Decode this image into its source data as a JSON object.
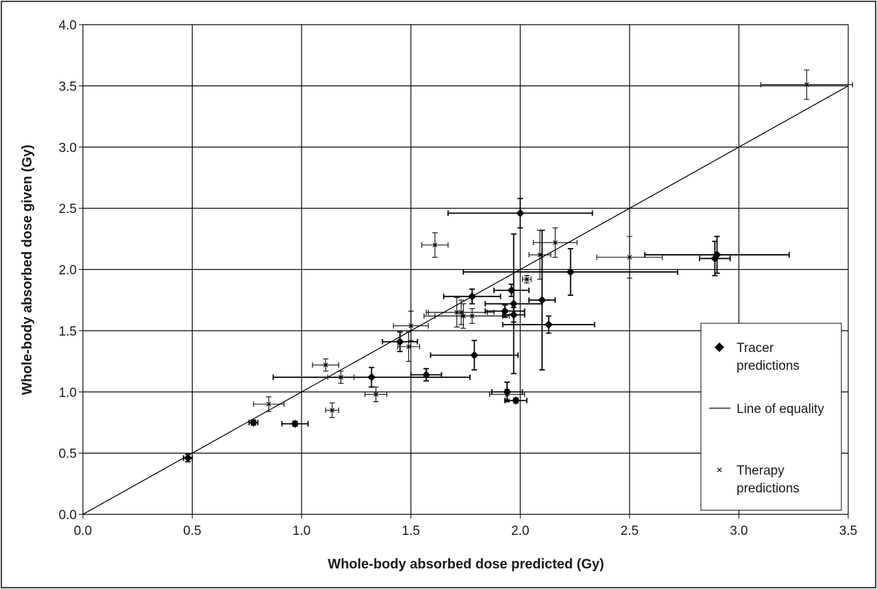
{
  "chart_data": {
    "type": "scatter",
    "title": "",
    "xlabel": "Whole-body absorbed dose predicted (Gy)",
    "ylabel": "Whole-body absorbed dose given (Gy)",
    "xlim": [
      0,
      3.5
    ],
    "ylim": [
      0,
      4.0
    ],
    "xticks": [
      "0.0",
      "0.5",
      "1.0",
      "1.5",
      "2.0",
      "2.5",
      "3.0",
      "3.5"
    ],
    "yticks": [
      "0.0",
      "0.5",
      "1.0",
      "1.5",
      "2.0",
      "2.5",
      "3.0",
      "3.5",
      "4.0"
    ],
    "grid": true,
    "legend_position": "bottom-right",
    "legend": [
      {
        "label_lines": [
          "Tracer",
          "predictions"
        ],
        "marker": "diamond"
      },
      {
        "label_lines": [
          "Line of equality"
        ],
        "marker": "line"
      },
      {
        "label_lines": [
          "Therapy",
          "predictions"
        ],
        "marker": "x"
      }
    ],
    "line_of_equality": {
      "x": [
        0,
        3.5
      ],
      "y": [
        0,
        3.5
      ]
    },
    "series": [
      {
        "name": "Tracer predictions",
        "marker": "diamond",
        "points": [
          {
            "x": 0.48,
            "y": 0.46,
            "xerr": 0.02,
            "yerr": 0.03
          },
          {
            "x": 0.78,
            "y": 0.75,
            "xerr": 0.02,
            "yerr": 0.02
          },
          {
            "x": 0.97,
            "y": 0.74,
            "xerr": 0.06,
            "yerr": 0.02
          },
          {
            "x": 1.32,
            "y": 1.12,
            "xerr": 0.45,
            "yerr": 0.08
          },
          {
            "x": 1.45,
            "y": 1.41,
            "xerr": 0.08,
            "yerr": 0.08
          },
          {
            "x": 1.57,
            "y": 1.14,
            "xerr": 0.07,
            "yerr": 0.05
          },
          {
            "x": 1.78,
            "y": 1.78,
            "xerr": 0.13,
            "yerr": 0.06
          },
          {
            "x": 1.79,
            "y": 1.3,
            "xerr": 0.2,
            "yerr": 0.12
          },
          {
            "x": 1.93,
            "y": 1.66,
            "xerr": 0.09,
            "yerr": 0.05
          },
          {
            "x": 1.96,
            "y": 1.83,
            "xerr": 0.08,
            "yerr": 0.05
          },
          {
            "x": 1.97,
            "y": 1.72,
            "xerr": 0.13,
            "yerr": 0.57
          },
          {
            "x": 1.97,
            "y": 1.63,
            "xerr": 0.05,
            "yerr": 0.06
          },
          {
            "x": 1.94,
            "y": 1.0,
            "xerr": 0.07,
            "yerr": 0.08
          },
          {
            "x": 1.98,
            "y": 0.93,
            "xerr": 0.05,
            "yerr": 0.02
          },
          {
            "x": 2.0,
            "y": 2.46,
            "xerr": 0.33,
            "yerr": 0.12
          },
          {
            "x": 2.1,
            "y": 1.75,
            "xerr": 0.06,
            "yerr": 0.57
          },
          {
            "x": 2.13,
            "y": 1.55,
            "xerr": 0.21,
            "yerr": 0.07
          },
          {
            "x": 2.23,
            "y": 1.98,
            "xerr": 0.49,
            "yerr": 0.19
          },
          {
            "x": 2.89,
            "y": 2.09,
            "xerr": 0.07,
            "yerr": 0.14
          },
          {
            "x": 2.9,
            "y": 2.12,
            "xerr": 0.33,
            "yerr": 0.15
          }
        ]
      },
      {
        "name": "Therapy predictions",
        "marker": "x",
        "points": [
          {
            "x": 0.85,
            "y": 0.9,
            "xerr": 0.07,
            "yerr": 0.06
          },
          {
            "x": 1.11,
            "y": 1.22,
            "xerr": 0.06,
            "yerr": 0.05
          },
          {
            "x": 1.18,
            "y": 1.12,
            "xerr": 0.06,
            "yerr": 0.05
          },
          {
            "x": 1.14,
            "y": 0.85,
            "xerr": 0.03,
            "yerr": 0.06
          },
          {
            "x": 1.34,
            "y": 0.98,
            "xerr": 0.05,
            "yerr": 0.06
          },
          {
            "x": 1.49,
            "y": 1.37,
            "xerr": 0.05,
            "yerr": 0.12
          },
          {
            "x": 1.5,
            "y": 1.54,
            "xerr": 0.08,
            "yerr": 0.12
          },
          {
            "x": 1.61,
            "y": 2.2,
            "xerr": 0.06,
            "yerr": 0.1
          },
          {
            "x": 1.71,
            "y": 1.65,
            "xerr": 0.14,
            "yerr": 0.12
          },
          {
            "x": 1.73,
            "y": 1.65,
            "xerr": 0.15,
            "yerr": 0.1
          },
          {
            "x": 1.74,
            "y": 1.62,
            "xerr": 0.18,
            "yerr": 0.1
          },
          {
            "x": 1.78,
            "y": 1.62,
            "xerr": 0.17,
            "yerr": 0.06
          },
          {
            "x": 1.94,
            "y": 0.98,
            "xerr": 0.08,
            "yerr": 0.04
          },
          {
            "x": 2.03,
            "y": 1.92,
            "xerr": 0.02,
            "yerr": 0.03
          },
          {
            "x": 2.09,
            "y": 2.12,
            "xerr": 0.05,
            "yerr": 0.2
          },
          {
            "x": 2.16,
            "y": 2.22,
            "xerr": 0.1,
            "yerr": 0.12
          },
          {
            "x": 2.5,
            "y": 2.1,
            "xerr": 0.15,
            "yerr": 0.17
          },
          {
            "x": 3.31,
            "y": 3.51,
            "xerr": 0.21,
            "yerr": 0.12
          }
        ]
      }
    ]
  }
}
